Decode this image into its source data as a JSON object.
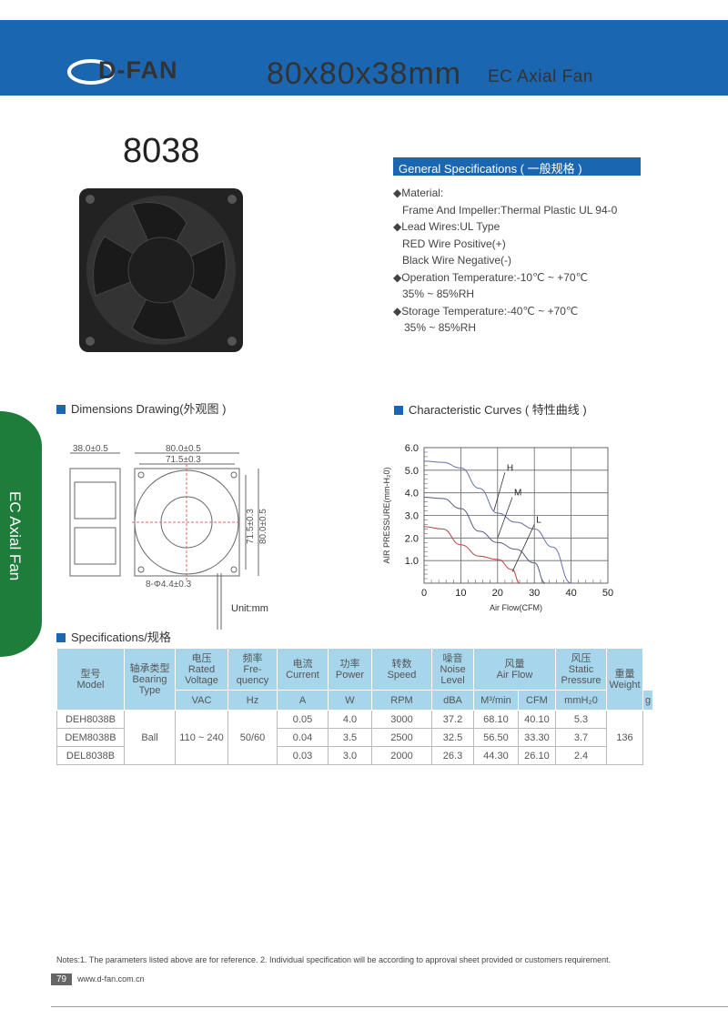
{
  "header": {
    "logo": "D-FAN",
    "size": "80x80x38mm",
    "product": "EC Axial Fan"
  },
  "model_title": "8038",
  "general_specs": {
    "title": "General Specifications ( 一般规格 )",
    "lines": [
      "◆Material:",
      "Frame And Impeller:Thermal Plastic UL 94-0",
      "◆Lead Wires:UL Type",
      "RED Wire Positive(+)",
      "Black Wire Negative(-)",
      "◆Operation Temperature:-10℃ ~ +70℃",
      "35% ~ 85%RH",
      "◆Storage Temperature:-40℃ ~ +70℃",
      " 35% ~ 85%RH"
    ]
  },
  "side_tab": "EC Axial Fan",
  "dimensions": {
    "title": "Dimensions Drawing(外观图 )",
    "depth": "38.0±0.5",
    "width": "80.0±0.5",
    "hole_spacing": "71.5±0.3",
    "height": "80.0±0.5",
    "hole_spacing_v": "71.5±0.3",
    "holes": "8-Φ4.4±0.3",
    "unit": "Unit:mm"
  },
  "curves_title": "Characteristic Curves ( 特性曲线 )",
  "chart_data": {
    "type": "line",
    "xlabel": "Air Flow(CFM)",
    "ylabel": "AIR PRESSURE(mm-H₂0)",
    "xlim": [
      0,
      50
    ],
    "ylim": [
      0,
      6
    ],
    "xticks": [
      "0",
      "10",
      "20",
      "30",
      "40",
      "50"
    ],
    "yticks": [
      "1.0",
      "2.0",
      "3.0",
      "4.0",
      "5.0",
      "6.0"
    ],
    "grid": true,
    "series": [
      {
        "name": "H",
        "color": "#6670b0",
        "x": [
          0,
          5,
          10,
          15,
          20,
          25,
          30,
          35,
          40
        ],
        "y": [
          5.4,
          5.35,
          5.1,
          4.2,
          3.1,
          2.7,
          2.4,
          1.6,
          0
        ]
      },
      {
        "name": "M",
        "color": "#555a80",
        "x": [
          0,
          5,
          10,
          15,
          20,
          25,
          30,
          33
        ],
        "y": [
          3.8,
          3.75,
          3.3,
          2.3,
          1.8,
          1.5,
          0.9,
          0
        ]
      },
      {
        "name": "L",
        "color": "#c04040",
        "x": [
          0,
          5,
          10,
          15,
          20,
          24,
          26
        ],
        "y": [
          2.5,
          2.4,
          1.7,
          1.2,
          1.05,
          0.6,
          0
        ]
      }
    ]
  },
  "specs_table": {
    "title": "Specifications/规格",
    "headers": [
      "型号\nModel",
      "轴承类型\nBearing\nType",
      "电压\nRated\nVoltage",
      "频率\nFre-\nquency",
      "电流\nCurrent",
      "功率\nPower",
      "转数\nSpeed",
      "噪音\nNoise\nLevel",
      "风量\nAir Flow",
      "风压\nStatic\nPressure",
      "重量\nWeight"
    ],
    "units": [
      "VAC",
      "Hz",
      "A",
      "W",
      "RPM",
      "dBA",
      "M³/min",
      "CFM",
      "mmH₂0",
      "g"
    ],
    "bearing": "Ball",
    "voltage": "110 ~ 240",
    "frequency": "50/60",
    "weight": "136",
    "rows": [
      [
        "DEH8038B",
        "0.05",
        "4.0",
        "3000",
        "37.2",
        "68.10",
        "40.10",
        "5.3"
      ],
      [
        "DEM8038B",
        "0.04",
        "3.5",
        "2500",
        "32.5",
        "56.50",
        "33.30",
        "3.7"
      ],
      [
        "DEL8038B",
        "0.03",
        "3.0",
        "2000",
        "26.3",
        "44.30",
        "26.10",
        "2.4"
      ]
    ]
  },
  "notes": "Notes:1. The parameters listed above are for reference.   2. Individual specification will be according to approval sheet provided or customers requirement.",
  "footer": {
    "page": "79",
    "url": "www.d-fan.com.cn"
  }
}
